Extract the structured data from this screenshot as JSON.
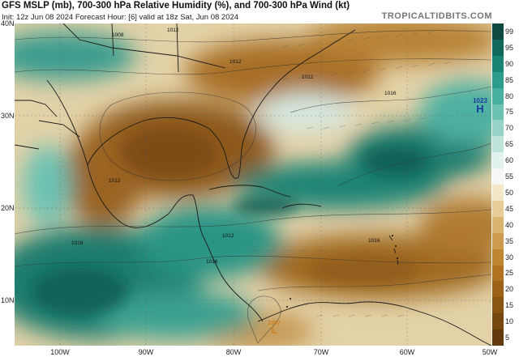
{
  "header": {
    "title": "GFS MSLP (mb), 700-300 hPa Relative Humidity (%), and 700-300 hPa Wind (kt)",
    "subtitle": "Init: 12z Jun 08 2024   Forecast Hour: [6]   valid at 18z Sat, Jun 08 2024"
  },
  "brand": "TROPICALTIDBITS.COM",
  "map": {
    "lat_labels": [
      "40N",
      "30N",
      "20N",
      "10N"
    ],
    "lon_labels": [
      "100W",
      "90W",
      "80W",
      "70W",
      "60W",
      "50W"
    ],
    "high": {
      "value": "1023",
      "letter": "H"
    },
    "low": {
      "value": "1007",
      "letter": "L"
    },
    "isobar_labels": [
      "1008",
      "1012",
      "1012",
      "1012",
      "1012",
      "1016",
      "1016",
      "1016",
      "1012",
      "1016"
    ]
  },
  "colorbar": {
    "labels": [
      "99",
      "95",
      "90",
      "85",
      "80",
      "75",
      "70",
      "65",
      "60",
      "55",
      "50",
      "45",
      "40",
      "35",
      "30",
      "25",
      "20",
      "15",
      "10",
      "5"
    ],
    "colors": [
      "#0d4a40",
      "#11695c",
      "#1a8575",
      "#2c9d8c",
      "#47b0a0",
      "#6cc2b3",
      "#94d3c6",
      "#bde4da",
      "#e2f2ee",
      "#f5f7f4",
      "#f3e7c8",
      "#e6cd98",
      "#d9b570",
      "#cc9c4c",
      "#bf8530",
      "#b07220",
      "#9e6217",
      "#8a5412",
      "#76470e",
      "#623a0b"
    ],
    "units": "%"
  }
}
